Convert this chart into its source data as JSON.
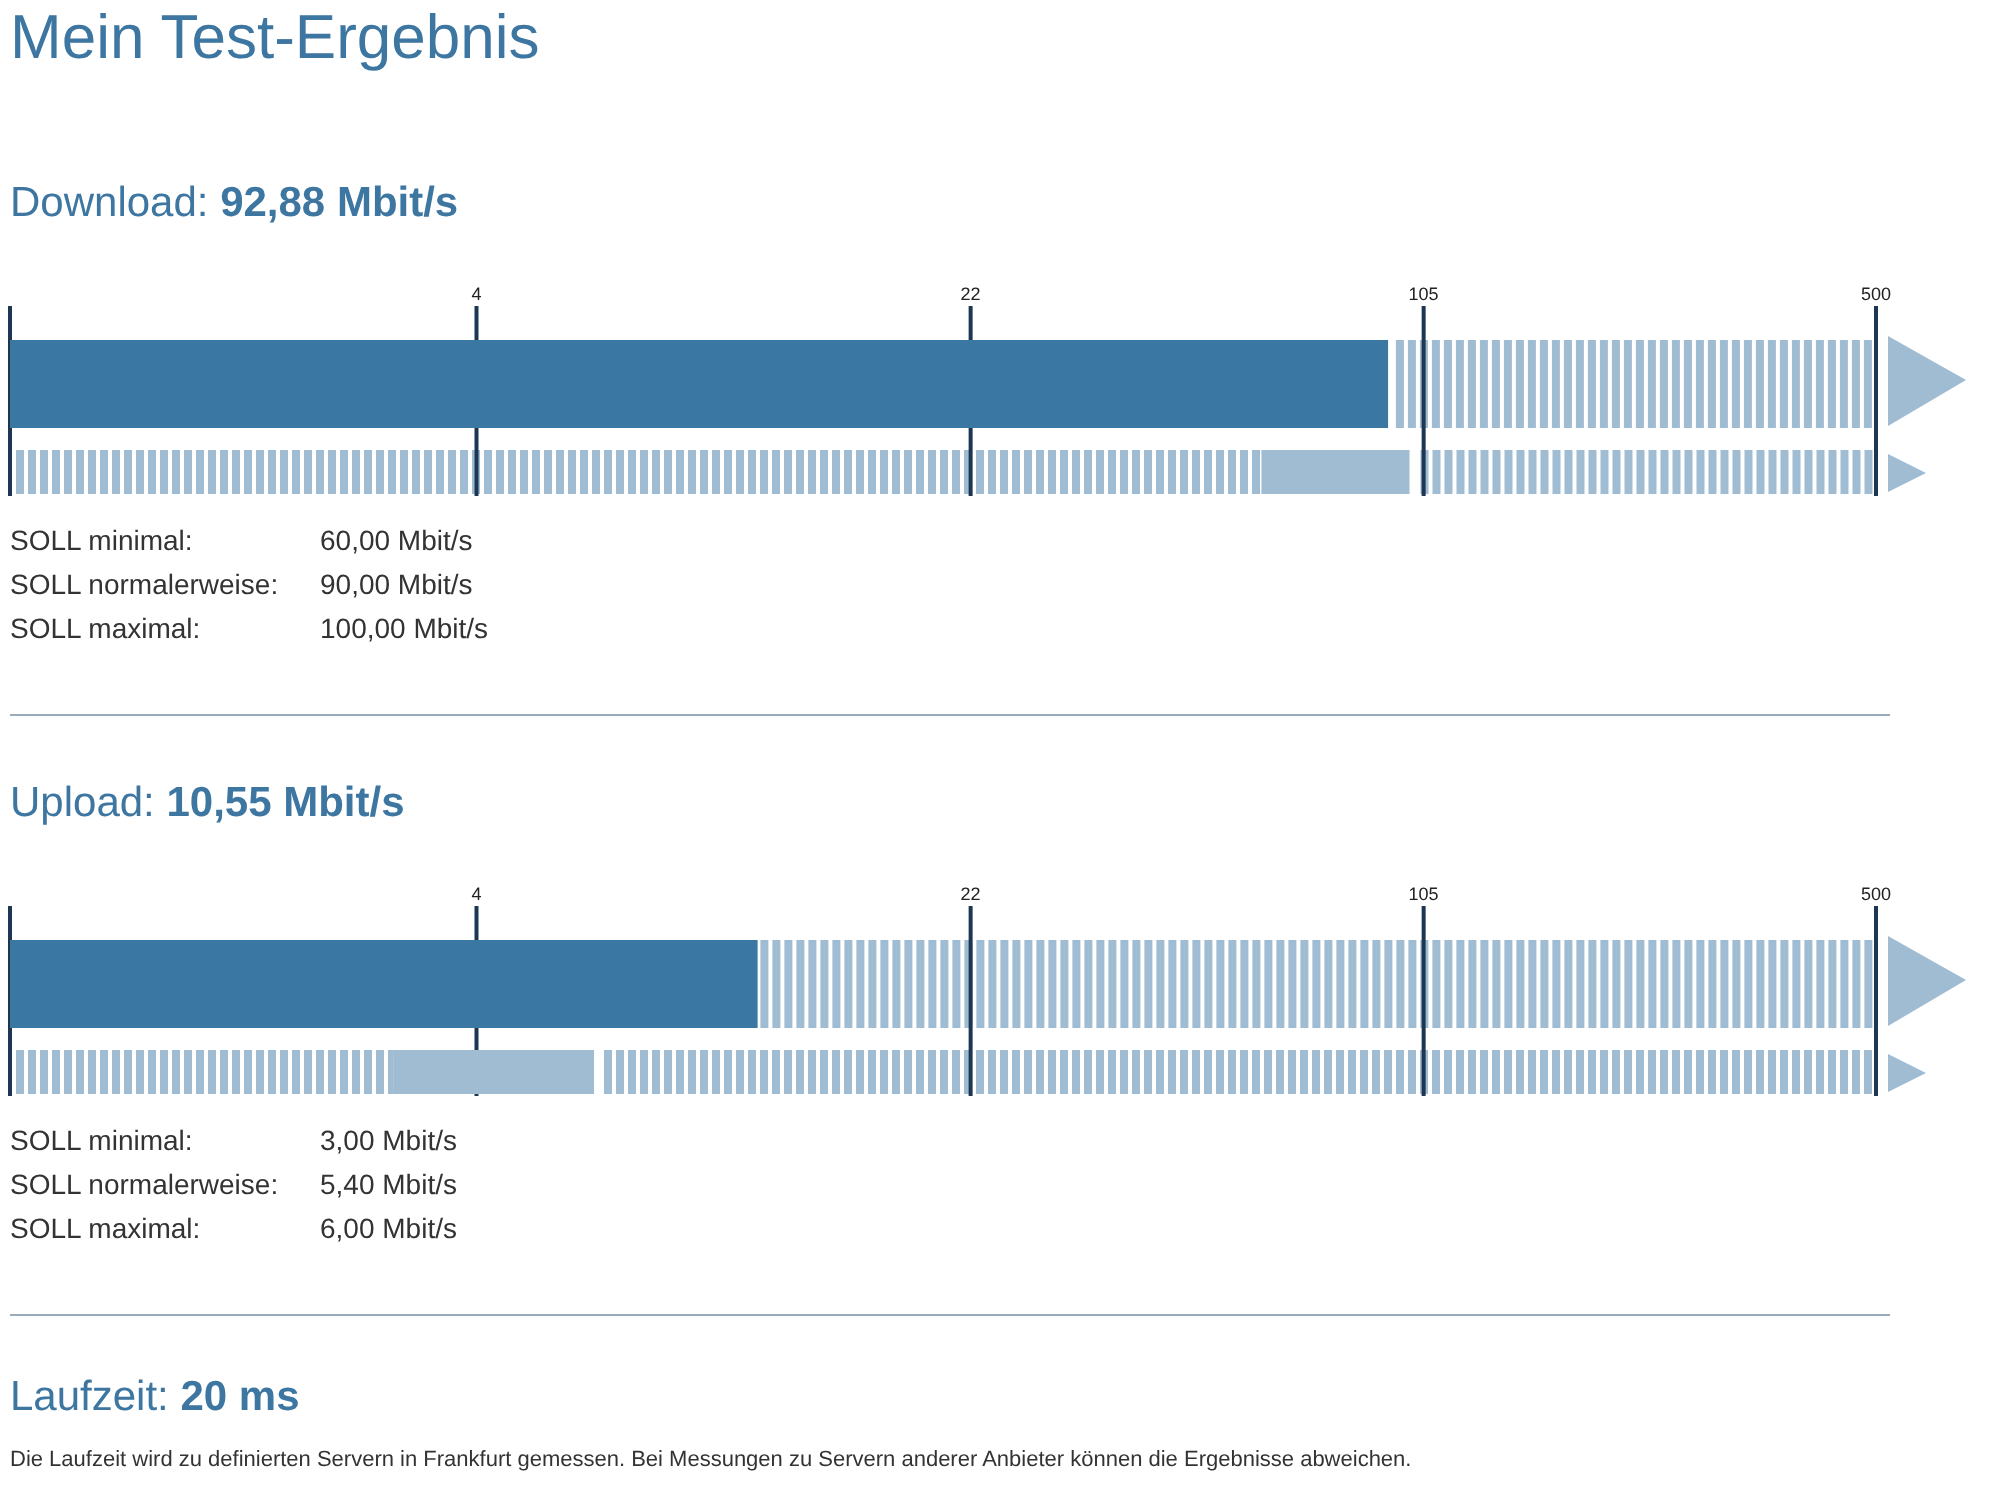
{
  "chart_data": [
    {
      "type": "bar",
      "title": "Mein Test-Ergebnis",
      "subtitle": "Download: 92,88 Mbit/s",
      "orientation": "horizontal",
      "categories": [
        null,
        null
      ],
      "values": [
        92.88,
        40
      ],
      "base": [
        null,
        60
      ],
      "colors": [
        "#3a78a3",
        "#9fbcd3"
      ],
      "log": "x",
      "xlim": [
        0.8,
        500
      ],
      "xticks": [
        {
          "value": 0.8,
          "label": null
        },
        4,
        22,
        105,
        500
      ],
      "grid": "x",
      "annotations": [
        "SOLL minimal:",
        "60,00 Mbit/s",
        "SOLL normalerweise:",
        "90,00 Mbit/s",
        "SOLL maximal:",
        "100,00 Mbit/s"
      ]
    },
    {
      "type": "bar",
      "title": "Upload: 10,55 Mbit/s",
      "orientation": "horizontal",
      "categories": [
        null,
        null
      ],
      "values": [
        10.55,
        3
      ],
      "base": [
        null,
        3
      ],
      "colors": [
        "#3a78a3",
        "#9fbcd3"
      ],
      "log": "x",
      "xlim": [
        0.8,
        500
      ],
      "xticks": [
        {
          "value": 0.8,
          "label": null
        },
        4,
        22,
        105,
        500
      ],
      "grid": "x",
      "annotations": [
        "SOLL minimal:",
        "3,00 Mbit/s",
        "SOLL normalerweise:",
        "5,40 Mbit/s",
        "SOLL maximal:",
        "6,00 Mbit/s"
      ]
    },
    {
      "type": "other",
      "title": "Laufzeit: 20 ms",
      "annotations": [
        "Die Laufzeit wird zu definierten Servern in Frankfurt gemessen. Bei Messungen zu Servern anderer Anbieter können die Ergebnisse abweichen."
      ]
    }
  ]
}
